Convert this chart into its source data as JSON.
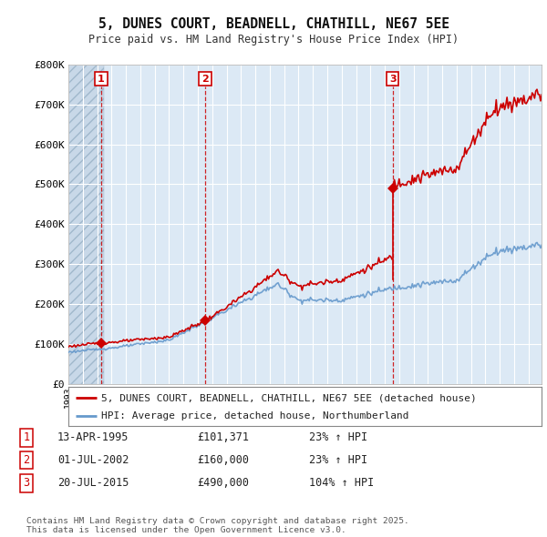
{
  "title": "5, DUNES COURT, BEADNELL, CHATHILL, NE67 5EE",
  "subtitle": "Price paid vs. HM Land Registry's House Price Index (HPI)",
  "ylim": [
    0,
    800000
  ],
  "yticks": [
    0,
    100000,
    200000,
    300000,
    400000,
    500000,
    600000,
    700000,
    800000
  ],
  "ytick_labels": [
    "£0",
    "£100K",
    "£200K",
    "£300K",
    "£400K",
    "£500K",
    "£600K",
    "£700K",
    "£800K"
  ],
  "background_color": "#ffffff",
  "plot_bg_color": "#dce9f5",
  "grid_color": "#ffffff",
  "transactions": [
    {
      "date_num": 1995.28,
      "price": 101371,
      "label": "1"
    },
    {
      "date_num": 2002.5,
      "price": 160000,
      "label": "2"
    },
    {
      "date_num": 2015.55,
      "price": 490000,
      "label": "3"
    }
  ],
  "sale_color": "#cc0000",
  "hpi_color": "#6699cc",
  "legend_sale_label": "5, DUNES COURT, BEADNELL, CHATHILL, NE67 5EE (detached house)",
  "legend_hpi_label": "HPI: Average price, detached house, Northumberland",
  "table_rows": [
    {
      "num": "1",
      "date": "13-APR-1995",
      "price": "£101,371",
      "hpi": "23% ↑ HPI"
    },
    {
      "num": "2",
      "date": "01-JUL-2002",
      "price": "£160,000",
      "hpi": "23% ↑ HPI"
    },
    {
      "num": "3",
      "date": "20-JUL-2015",
      "price": "£490,000",
      "hpi": "104% ↑ HPI"
    }
  ],
  "footnote": "Contains HM Land Registry data © Crown copyright and database right 2025.\nThis data is licensed under the Open Government Licence v3.0.",
  "xmin": 1993.0,
  "xmax": 2025.9
}
